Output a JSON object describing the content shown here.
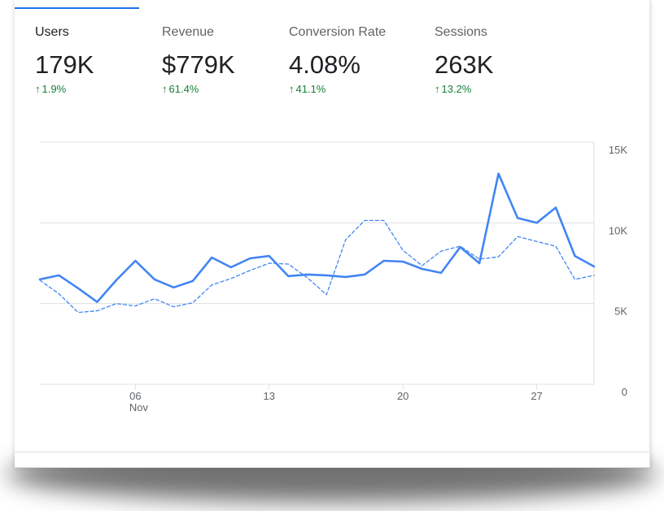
{
  "metrics": [
    {
      "label": "Users",
      "value": "179K",
      "delta": "1.9%",
      "active": true
    },
    {
      "label": "Revenue",
      "value": "$779K",
      "delta": "61.4%",
      "active": false
    },
    {
      "label": "Conversion Rate",
      "value": "4.08%",
      "delta": "41.1%",
      "active": false
    },
    {
      "label": "Sessions",
      "value": "263K",
      "delta": "13.2%",
      "active": false
    }
  ],
  "colors": {
    "accent": "#4285f4",
    "positive": "#188038",
    "grid": "#e0e0e0",
    "text": "#5f6368"
  },
  "chart_data": {
    "type": "line",
    "x": [
      1,
      2,
      3,
      4,
      5,
      6,
      7,
      8,
      9,
      10,
      11,
      12,
      13,
      14,
      15,
      16,
      17,
      18,
      19,
      20,
      21,
      22,
      23,
      24,
      25,
      26,
      27,
      28,
      29,
      30
    ],
    "x_ticks": [
      {
        "x": 6,
        "label": "06",
        "sublabel": "Nov"
      },
      {
        "x": 13,
        "label": "13",
        "sublabel": ""
      },
      {
        "x": 20,
        "label": "20",
        "sublabel": ""
      },
      {
        "x": 27,
        "label": "27",
        "sublabel": ""
      }
    ],
    "y_ticks": [
      {
        "value": 0,
        "label": "0"
      },
      {
        "value": 5000,
        "label": "5K"
      },
      {
        "value": 10000,
        "label": "10K"
      },
      {
        "value": 15000,
        "label": "15K"
      }
    ],
    "ylim": [
      0,
      15000
    ],
    "xlim": [
      1,
      30
    ],
    "grid": true,
    "series": [
      {
        "style": "solid",
        "values": [
          6500,
          6750,
          5950,
          5100,
          6450,
          7650,
          6500,
          6000,
          6400,
          7850,
          7250,
          7800,
          7950,
          6700,
          6800,
          6750,
          6650,
          6800,
          7650,
          7600,
          7150,
          6900,
          8500,
          7500,
          13050,
          10300,
          10000,
          10950,
          7950,
          7300
        ]
      },
      {
        "style": "dashed",
        "values": [
          6450,
          5600,
          4450,
          4550,
          5000,
          4850,
          5300,
          4800,
          5050,
          6150,
          6550,
          7050,
          7500,
          7450,
          6600,
          5550,
          8950,
          10150,
          10150,
          8300,
          7350,
          8250,
          8550,
          7750,
          7900,
          9150,
          8850,
          8550,
          6500,
          6750
        ]
      }
    ]
  }
}
